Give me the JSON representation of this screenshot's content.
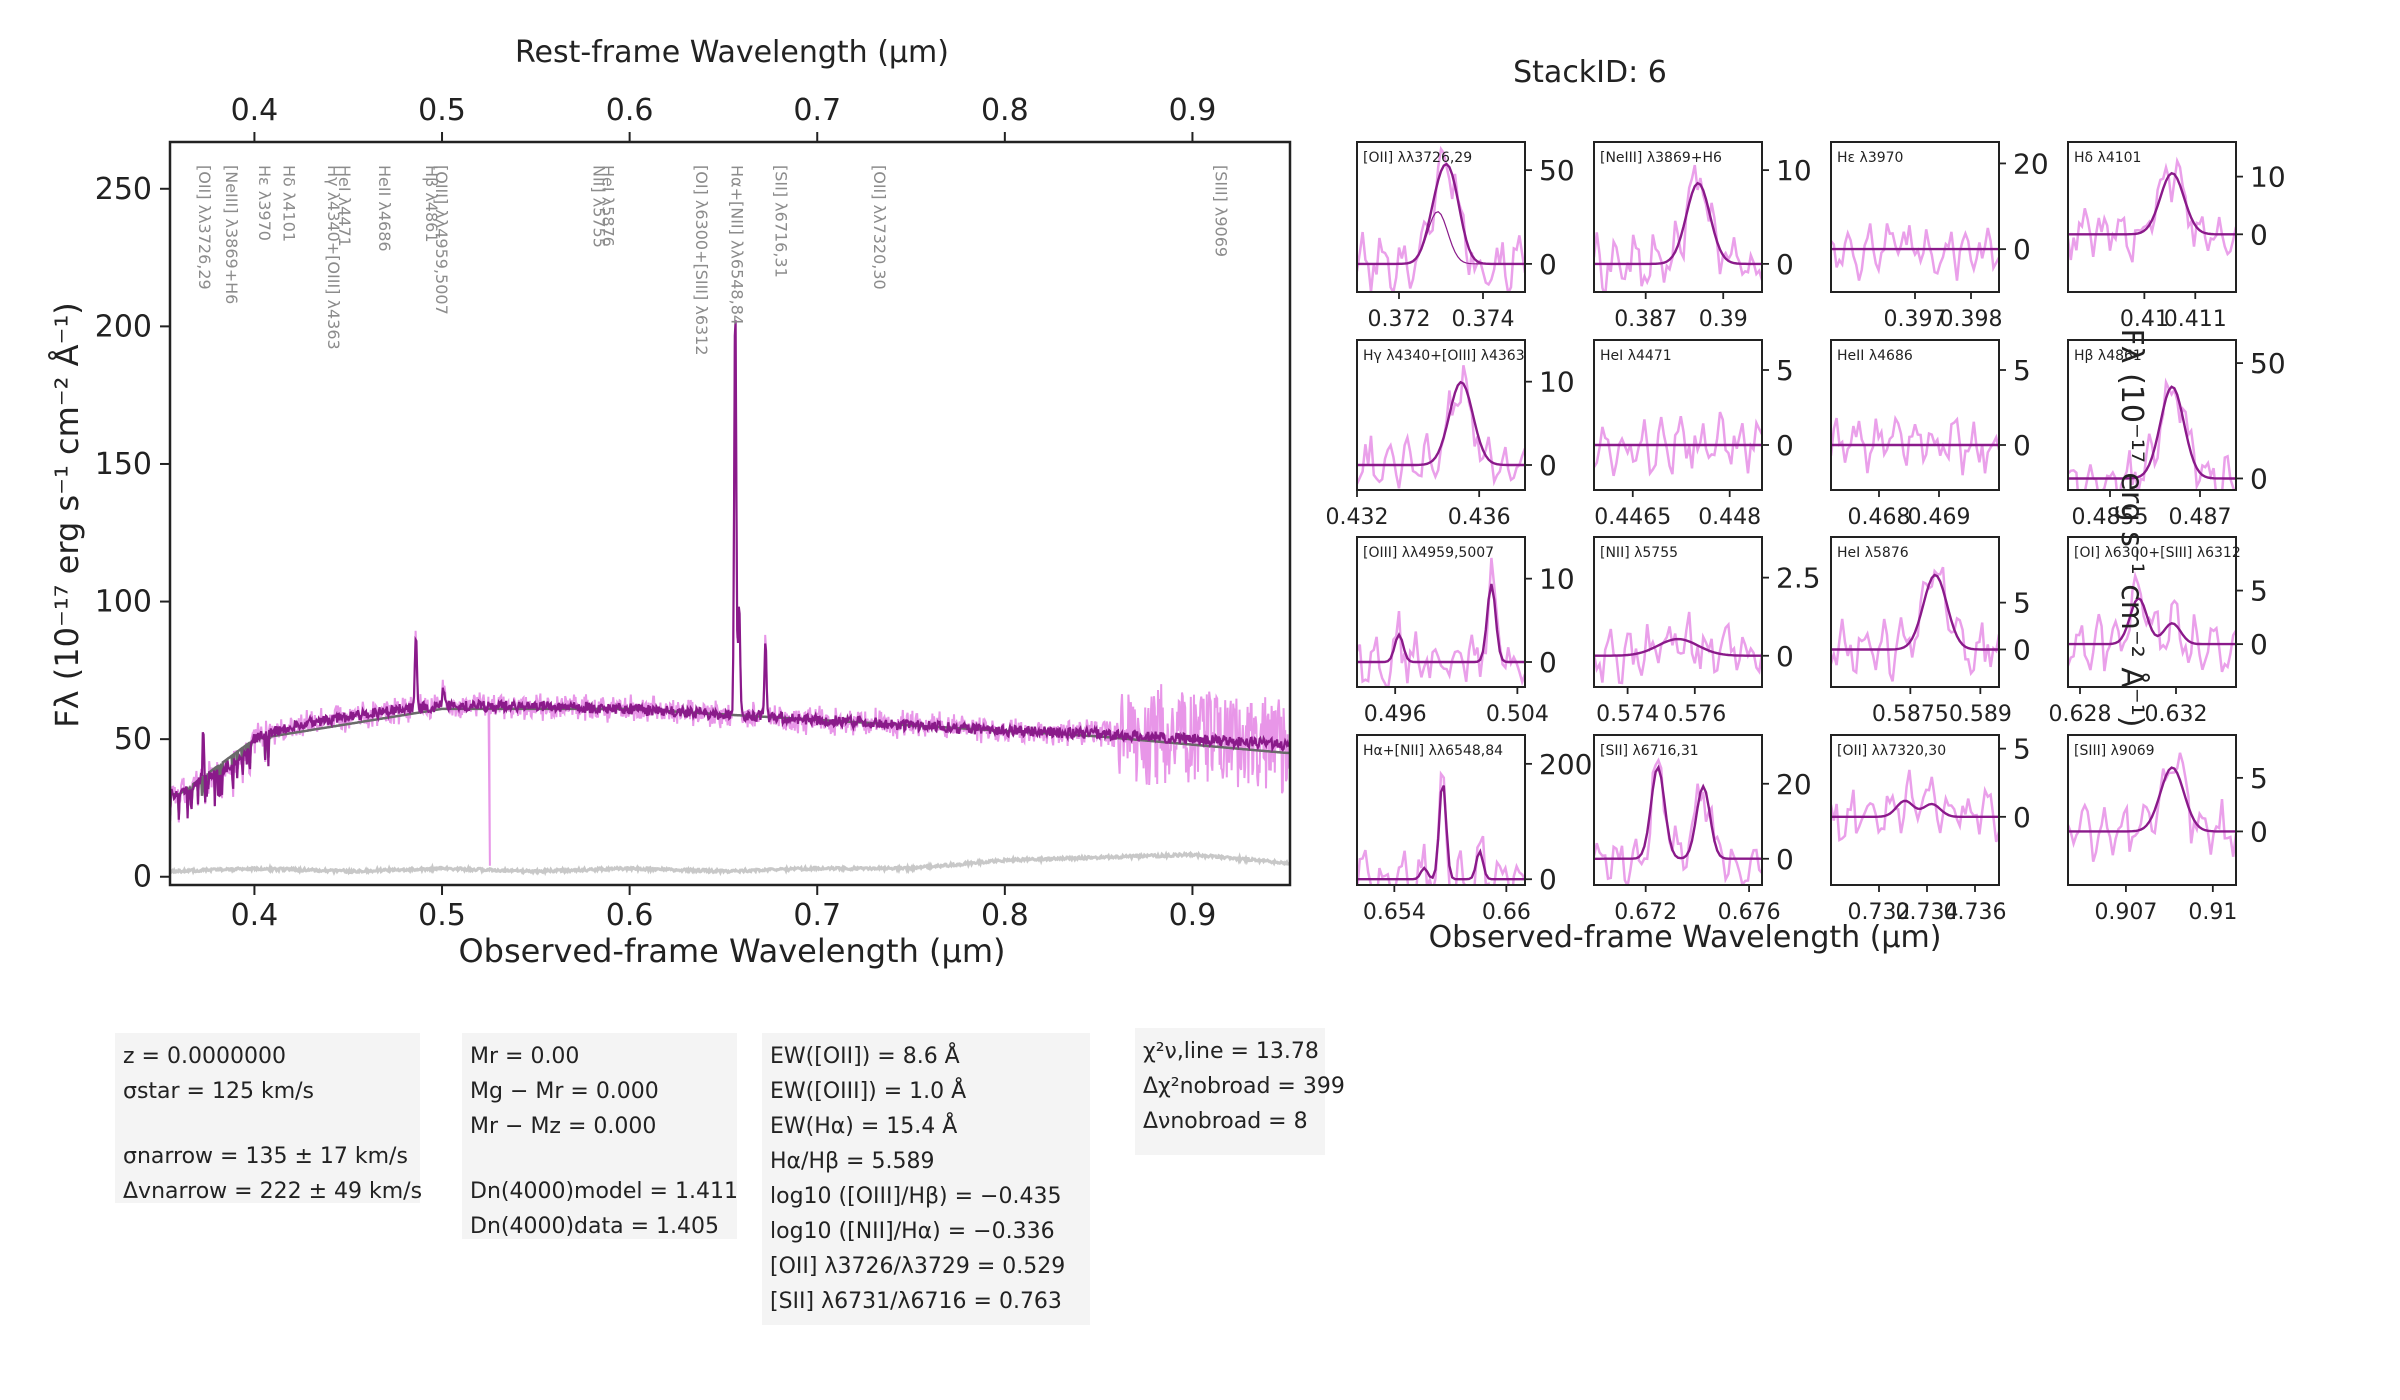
{
  "title": "StackID: 6",
  "main_plot": {
    "top_axis_label": "Rest-frame Wavelength (μm)",
    "bottom_axis_label": "Observed-frame Wavelength (μm)",
    "y_axis_label": "Fλ (10⁻¹⁷ erg s⁻¹ cm⁻² Å⁻¹)"
  },
  "line_labels": [
    {
      "text": "[OII] λλ3726,29",
      "x": 0.3727
    },
    {
      "text": "Hε λ3970",
      "x": 0.397
    },
    {
      "text": "[NeIII] λ3869+H6",
      "x": 0.3869
    },
    {
      "text": "Hδ λ4101",
      "x": 0.4101
    },
    {
      "text": "HeI λ4471",
      "x": 0.4471
    },
    {
      "text": "Hγ λ4340+[OIII] λ4363",
      "x": 0.434
    },
    {
      "text": "HeII λ4686",
      "x": 0.4686
    },
    {
      "text": "Hβ λ4861",
      "x": 0.4861
    },
    {
      "text": "[OIII] λλ4959,5007",
      "x": 0.499
    },
    {
      "text": "NII] λ5755",
      "x": 0.5755
    },
    {
      "text": "HeI λ5876",
      "x": 0.5876
    },
    {
      "text": "[OI] λ6300+[SIII] λ6312",
      "x": 0.63
    },
    {
      "text": "Hα+[NII] λλ6548,84",
      "x": 0.6563
    },
    {
      "text": "[SII] λ6716,31",
      "x": 0.6724
    },
    {
      "text": "[OII] λλ7320,30",
      "x": 0.7325
    },
    {
      "text": "[SIII] λ9069",
      "x": 0.9069
    }
  ],
  "chart_data": [
    {
      "type": "line",
      "title": "",
      "xlabel": "Observed-frame Wavelength (μm)",
      "ylabel": "Fλ (10⁻¹⁷ erg s⁻¹ cm⁻² Å⁻¹)",
      "top_xlabel": "Rest-frame Wavelength (μm)",
      "xlim": [
        0.355,
        0.952
      ],
      "ylim": [
        -3,
        267
      ],
      "xticks": [
        0.4,
        0.5,
        0.6,
        0.7,
        0.8,
        0.9
      ],
      "yticks": [
        0,
        50,
        100,
        150,
        200,
        250
      ],
      "colors": {
        "data": "#e896e8",
        "model": "#8a1a8a",
        "continuum": "#6a6a6a",
        "error": "#c8c8c8"
      },
      "series": [
        {
          "role": "data",
          "x": [
            0.36,
            0.37,
            0.38,
            0.39,
            0.4,
            0.42,
            0.45,
            0.48,
            0.5,
            0.55,
            0.6,
            0.65,
            0.7,
            0.75,
            0.8,
            0.85,
            0.9,
            0.95
          ],
          "y": [
            30,
            35,
            38,
            42,
            50,
            55,
            58,
            61,
            62,
            62,
            61,
            59,
            57,
            55,
            53,
            52,
            50,
            45
          ]
        },
        {
          "role": "model",
          "x": [
            0.36,
            0.37,
            0.38,
            0.39,
            0.4,
            0.42,
            0.45,
            0.48,
            0.5,
            0.55,
            0.6,
            0.65,
            0.7,
            0.75,
            0.8,
            0.85,
            0.9,
            0.95
          ],
          "y": [
            30,
            35,
            38,
            42,
            50,
            55,
            58,
            61,
            62,
            62,
            61,
            59,
            57,
            55,
            53,
            52,
            50,
            48
          ]
        },
        {
          "role": "continuum",
          "x": [
            0.36,
            0.4,
            0.5,
            0.6,
            0.7,
            0.8,
            0.85,
            0.9,
            0.95
          ],
          "y": [
            30,
            50,
            61,
            61,
            57,
            53,
            51,
            48,
            45
          ]
        },
        {
          "role": "error",
          "x": [
            0.36,
            0.4,
            0.45,
            0.5,
            0.55,
            0.6,
            0.65,
            0.7,
            0.75,
            0.8,
            0.85,
            0.9,
            0.95
          ],
          "y": [
            2,
            3,
            2,
            3,
            2,
            3,
            2,
            3,
            3,
            6,
            7,
            8,
            5
          ]
        }
      ],
      "peaks": [
        {
          "x": 0.3727,
          "y": 79
        },
        {
          "x": 0.4861,
          "y": 88
        },
        {
          "x": 0.5007,
          "y": 67
        },
        {
          "x": 0.6563,
          "y": 212
        },
        {
          "x": 0.6584,
          "y": 100
        },
        {
          "x": 0.6724,
          "y": 88
        }
      ]
    },
    {
      "type": "line",
      "title": "[OII] λλ3726,29",
      "xlim": [
        0.371,
        0.375
      ],
      "ylim": [
        -15,
        65
      ],
      "xticks": [
        0.372,
        0.374
      ],
      "yticks": [
        0,
        50
      ]
    },
    {
      "type": "line",
      "title": "[NeIII] λ3869+H6",
      "xlim": [
        0.385,
        0.3915
      ],
      "ylim": [
        -3,
        13
      ],
      "xticks": [
        0.387,
        0.39
      ],
      "yticks": [
        0,
        10
      ]
    },
    {
      "type": "line",
      "title": "Hε λ3970",
      "xlim": [
        0.3955,
        0.3985
      ],
      "ylim": [
        -10,
        25
      ],
      "xticks": [
        0.397,
        0.398
      ],
      "yticks": [
        0,
        20
      ]
    },
    {
      "type": "line",
      "title": "Hδ λ4101",
      "xlim": [
        0.4085,
        0.4118
      ],
      "ylim": [
        -10,
        16
      ],
      "xticks": [
        0.41,
        0.411
      ],
      "yticks": [
        0,
        10
      ]
    },
    {
      "type": "line",
      "title": "Hγ λ4340+[OIII] λ4363",
      "xlim": [
        0.432,
        0.4375
      ],
      "ylim": [
        -3,
        15
      ],
      "xticks": [
        0.432,
        0.436
      ],
      "yticks": [
        0,
        10
      ]
    },
    {
      "type": "line",
      "title": "HeI λ4471",
      "xlim": [
        0.4459,
        0.4485
      ],
      "ylim": [
        -3,
        7
      ],
      "xticks": [
        0.4465,
        0.448
      ],
      "yticks": [
        0,
        5
      ]
    },
    {
      "type": "line",
      "title": "HeII λ4686",
      "xlim": [
        0.4672,
        0.47
      ],
      "ylim": [
        -3,
        7
      ],
      "xticks": [
        0.468,
        0.469
      ],
      "yticks": [
        0,
        5
      ]
    },
    {
      "type": "line",
      "title": "Hβ λ4861",
      "xlim": [
        0.4848,
        0.4876
      ],
      "ylim": [
        -5,
        60
      ],
      "xticks": [
        0.4855,
        0.487
      ],
      "yticks": [
        0,
        50
      ]
    },
    {
      "type": "line",
      "title": "[OIII] λλ4959,5007",
      "xlim": [
        0.4935,
        0.5045
      ],
      "ylim": [
        -3,
        15
      ],
      "xticks": [
        0.496,
        0.504
      ],
      "yticks": [
        0,
        10
      ]
    },
    {
      "type": "line",
      "title": "[NII] λ5755",
      "xlim": [
        0.573,
        0.578
      ],
      "ylim": [
        -1.0,
        3.8
      ],
      "xticks": [
        0.574,
        0.576
      ],
      "yticks": [
        0.0,
        2.5
      ]
    },
    {
      "type": "line",
      "title": "HeI λ5876",
      "xlim": [
        0.5858,
        0.5894
      ],
      "ylim": [
        -4,
        12
      ],
      "xticks": [
        0.5875,
        0.589
      ],
      "yticks": [
        0,
        5
      ]
    },
    {
      "type": "line",
      "title": "[OI] λ6300+[SIII] λ6312",
      "xlim": [
        0.6275,
        0.6345
      ],
      "ylim": [
        -4,
        10
      ],
      "xticks": [
        0.628,
        0.632
      ],
      "yticks": [
        0,
        5
      ]
    },
    {
      "type": "line",
      "title": "Hα+[NII] λλ6548,84",
      "xlim": [
        0.652,
        0.661
      ],
      "ylim": [
        -10,
        250
      ],
      "xticks": [
        0.654,
        0.66
      ],
      "yticks": [
        0,
        200
      ]
    },
    {
      "type": "line",
      "title": "[SII] λ6716,31",
      "xlim": [
        0.67,
        0.6765
      ],
      "ylim": [
        -7,
        33
      ],
      "xticks": [
        0.672,
        0.676
      ],
      "yticks": [
        0,
        20
      ]
    },
    {
      "type": "line",
      "title": "[OII] λλ7320,30",
      "xlim": [
        0.73,
        0.737
      ],
      "ylim": [
        -5,
        6
      ],
      "xticks": [
        0.732,
        0.734,
        0.736
      ],
      "yticks": [
        0,
        5
      ]
    },
    {
      "type": "line",
      "title": "[SIII] λ9069",
      "xlim": [
        0.905,
        0.9108
      ],
      "ylim": [
        -5,
        9
      ],
      "xticks": [
        0.907,
        0.91
      ],
      "yticks": [
        0,
        5
      ]
    }
  ],
  "rest_ticks": [
    0.4,
    0.5,
    0.6,
    0.7,
    0.8,
    0.9
  ],
  "panels_xlabel": "Observed-frame Wavelength (μm)",
  "panels_ylabel": "Fλ (10⁻¹⁷ erg s⁻¹ cm⁻² Å⁻¹)",
  "info_boxes": {
    "box1": [
      "z = 0.0000000",
      "σstar = 125 km/s",
      "",
      "σnarrow = 135 ± 17 km/s",
      "Δvnarrow = 222 ± 49 km/s"
    ],
    "box2": [
      "Mr = 0.00",
      "Mg − Mr = 0.000",
      "Mr − Mz = 0.000",
      "",
      "Dn(4000)model = 1.411",
      "Dn(4000)data = 1.405"
    ],
    "box3": [
      "EW([OII]) = 8.6 Å",
      "EW([OIII]) = 1.0 Å",
      "EW(Hα) = 15.4 Å",
      "Hα/Hβ = 5.589",
      "log10 ([OIII]/Hβ) = −0.435",
      "log10 ([NII]/Hα) = −0.336",
      "[OII] λ3726/λ3729 = 0.529",
      "[SII] λ6731/λ6716 = 0.763"
    ],
    "box4": [
      "χ²ν,line = 13.78",
      "Δχ²nobroad = 399",
      "Δνnobroad = 8"
    ]
  }
}
